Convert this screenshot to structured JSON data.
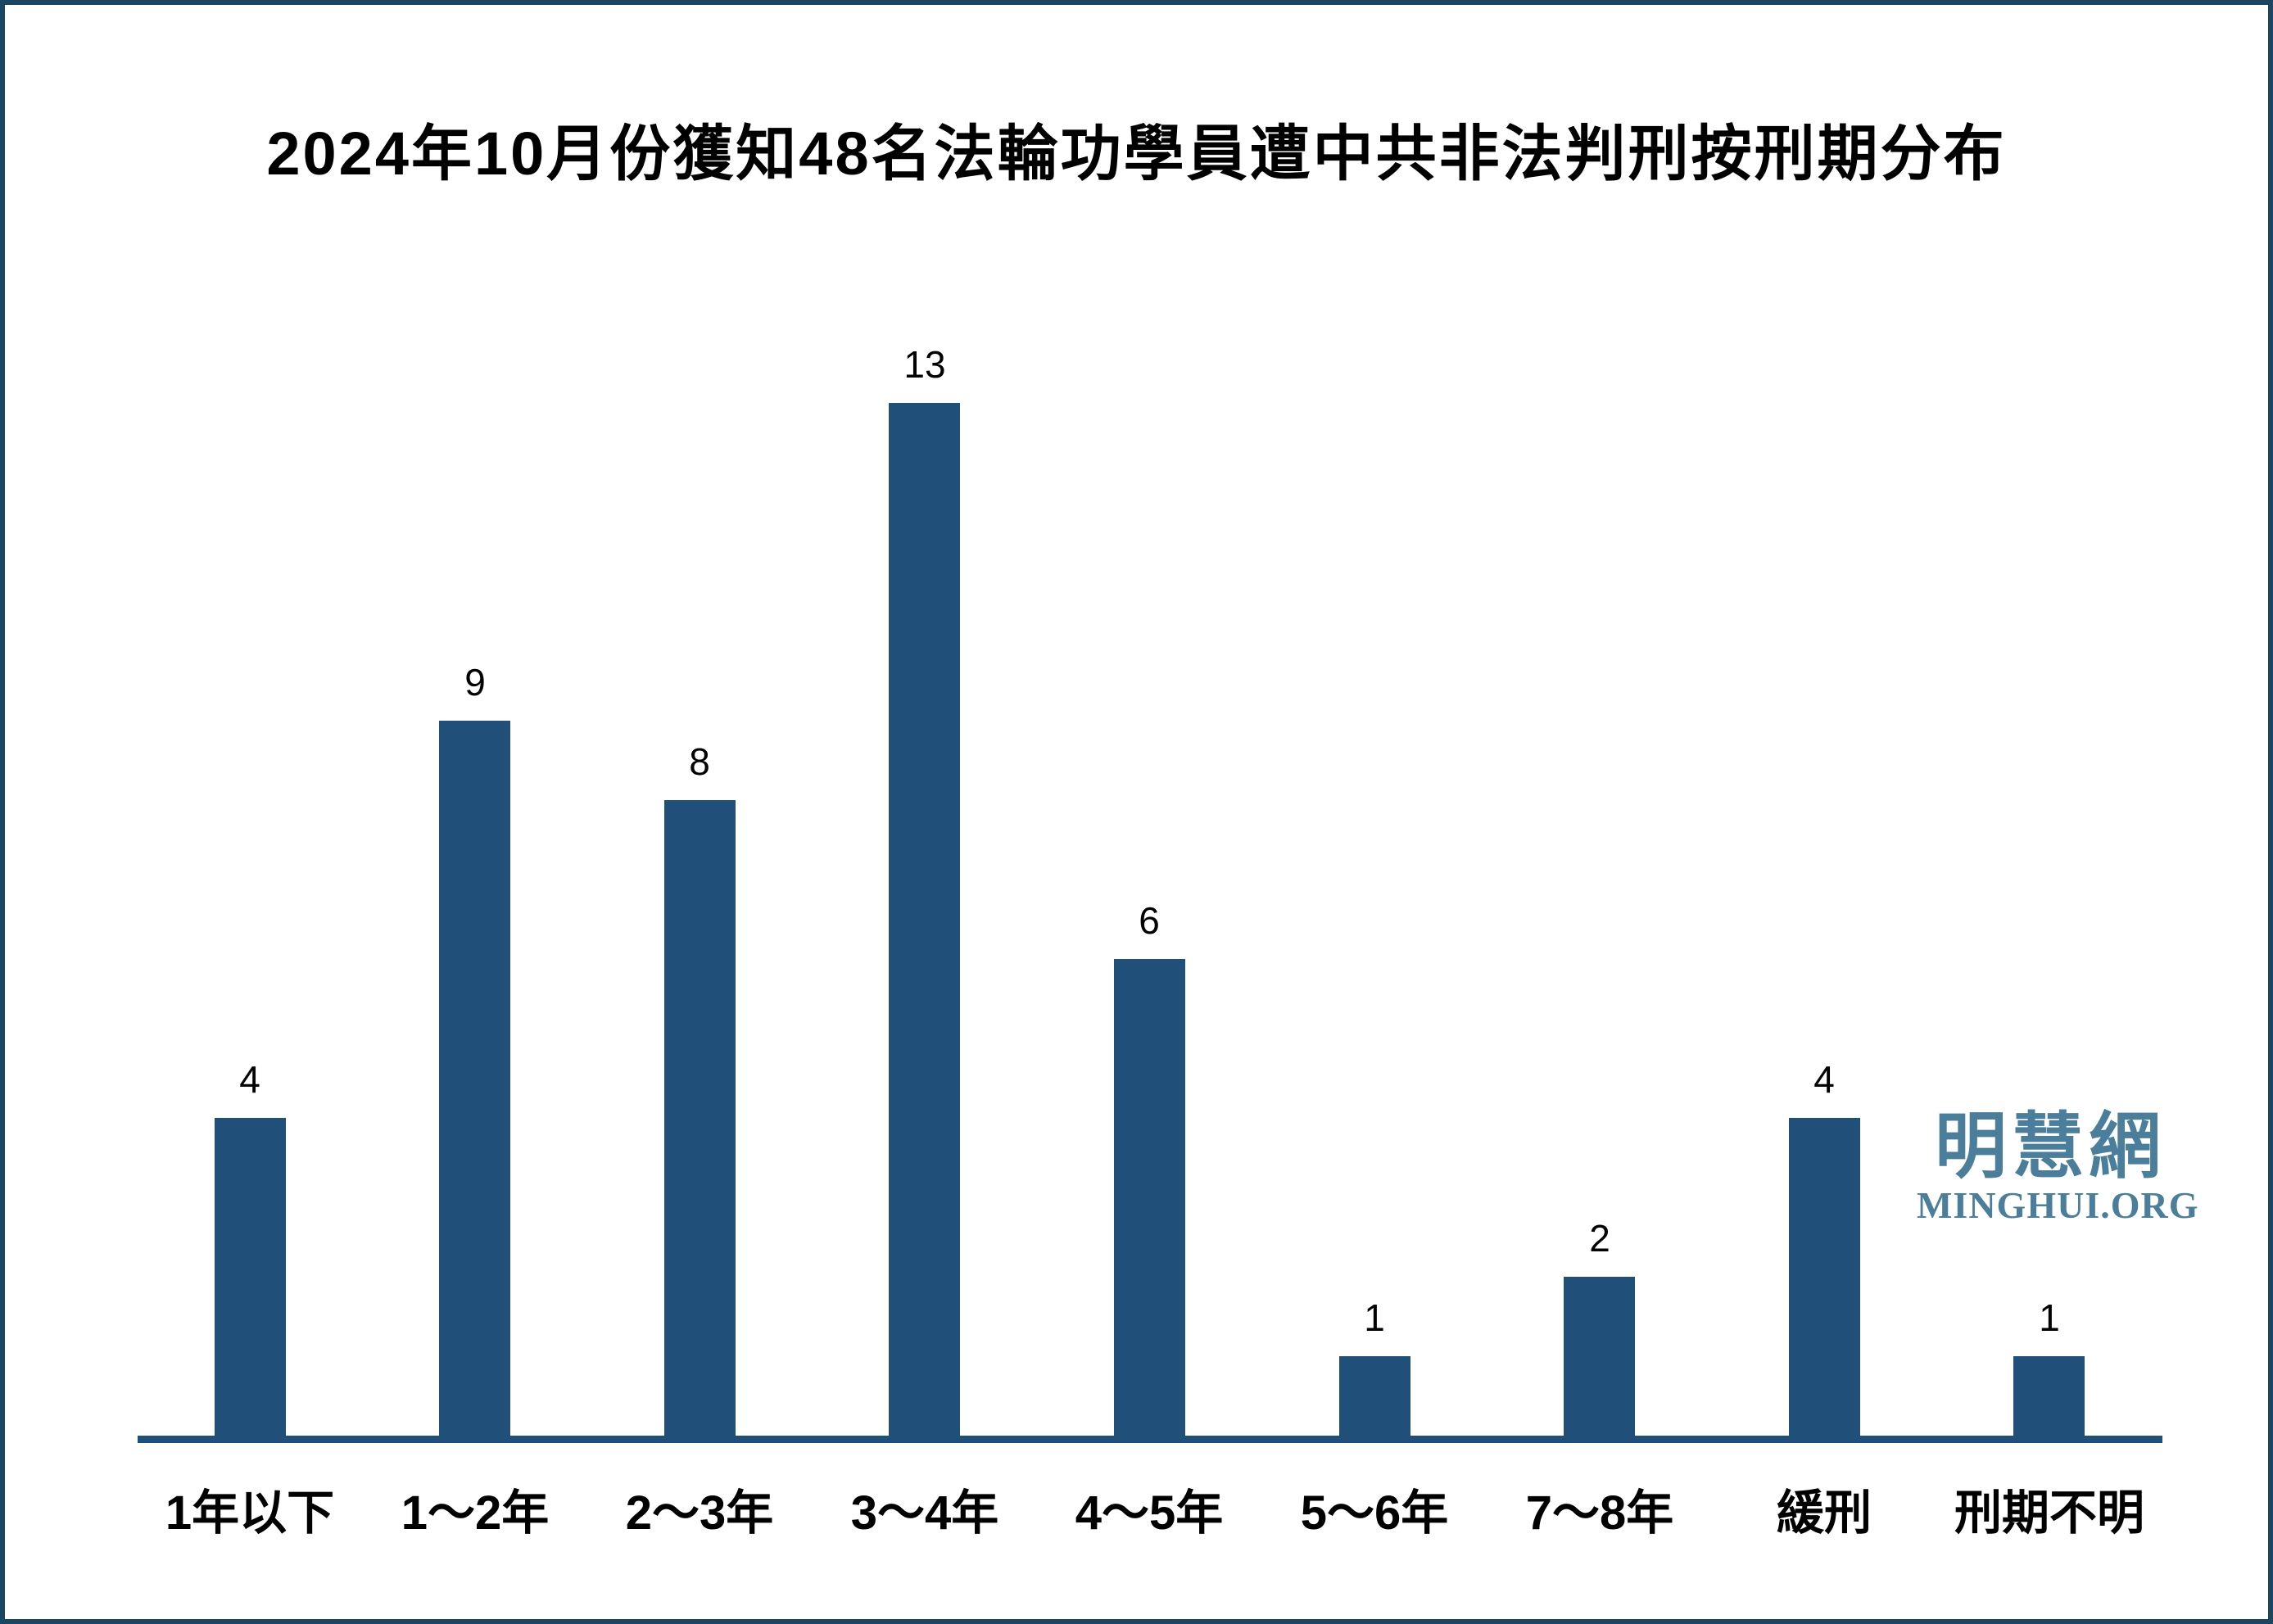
{
  "title": "2024年10月份獲知48名法輪功學員遭中共非法判刑按刑期分布",
  "watermark": {
    "cn": "明慧網",
    "en": "MINGHUI.ORG"
  },
  "colors": {
    "bar": "#205079",
    "axis": "#205079",
    "frame_border": "#1B4663",
    "watermark": "#4B7E9B",
    "text": "#000000",
    "background": "#ffffff"
  },
  "chart_data": {
    "type": "bar",
    "title": "2024年10月份獲知48名法輪功學員遭中共非法判刑按刑期分布",
    "categories": [
      "1年以下",
      "1～2年",
      "2～3年",
      "3～4年",
      "4～5年",
      "5～6年",
      "7～8年",
      "緩刑",
      "刑期不明"
    ],
    "values": [
      4,
      9,
      8,
      13,
      6,
      1,
      2,
      4,
      1
    ],
    "xlabel": "",
    "ylabel": "",
    "ylim": [
      0,
      14
    ],
    "grid": false,
    "legend": false,
    "value_labels_shown": true,
    "bar_color": "#205079"
  }
}
